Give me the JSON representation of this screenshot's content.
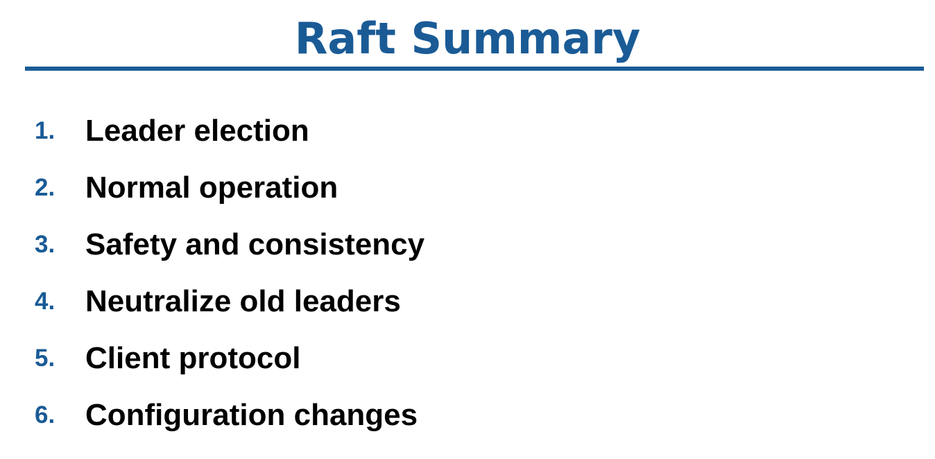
{
  "slide": {
    "title": "Raft Summary",
    "items": [
      {
        "number": "1.",
        "label": "Leader election"
      },
      {
        "number": "2.",
        "label": "Normal operation"
      },
      {
        "number": "3.",
        "label": "Safety and consistency"
      },
      {
        "number": "4.",
        "label": "Neutralize old leaders"
      },
      {
        "number": "5.",
        "label": "Client protocol"
      },
      {
        "number": "6.",
        "label": "Configuration changes"
      }
    ]
  },
  "colors": {
    "accent": "#1a5b96",
    "text": "#000000",
    "background": "#ffffff"
  }
}
